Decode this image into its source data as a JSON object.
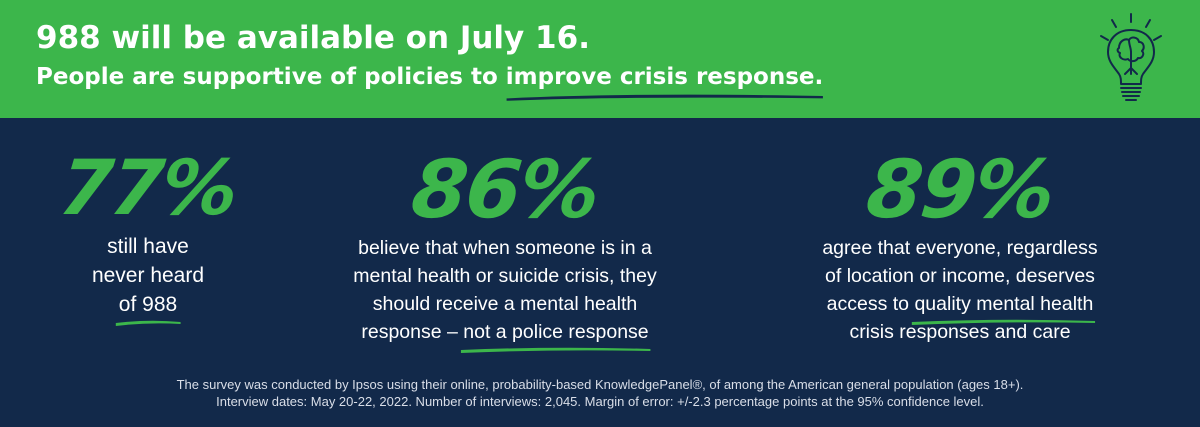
{
  "header": {
    "title": "988 will be available on July 16.",
    "subtitle_before": "People are supportive of policies to ",
    "subtitle_highlight": "improve crisis response.",
    "icon": "lightbulb-brain-icon",
    "background_color": "#3cb64b"
  },
  "stats": [
    {
      "value": "77%",
      "lines": [
        "still have",
        "never heard",
        "of 988"
      ]
    },
    {
      "value": "86%",
      "lines": [
        "believe that when someone is in a",
        "mental health or suicide crisis, they",
        "should receive a mental health"
      ],
      "last_line_before": "response – ",
      "last_line_highlight": "not a police response"
    },
    {
      "value": "89%",
      "lines": [
        "agree that everyone, regardless",
        "of location or income, deserves"
      ],
      "line3_before": "access to ",
      "line3_highlight": "quality mental health",
      "line4": "crisis responses and care"
    }
  ],
  "footnote": {
    "line1": "The survey was conducted by Ipsos using their online, probability-based KnowledgePanel®, of among the American general population (ages 18+).",
    "line2": "Interview dates: May 20-22, 2022. Number of interviews: 2,045. Margin of error: +/-2.3 percentage points at the 95% confidence level."
  },
  "colors": {
    "accent_green": "#3cb64b",
    "background_navy": "#12294a",
    "header_underline": "#12294a"
  }
}
